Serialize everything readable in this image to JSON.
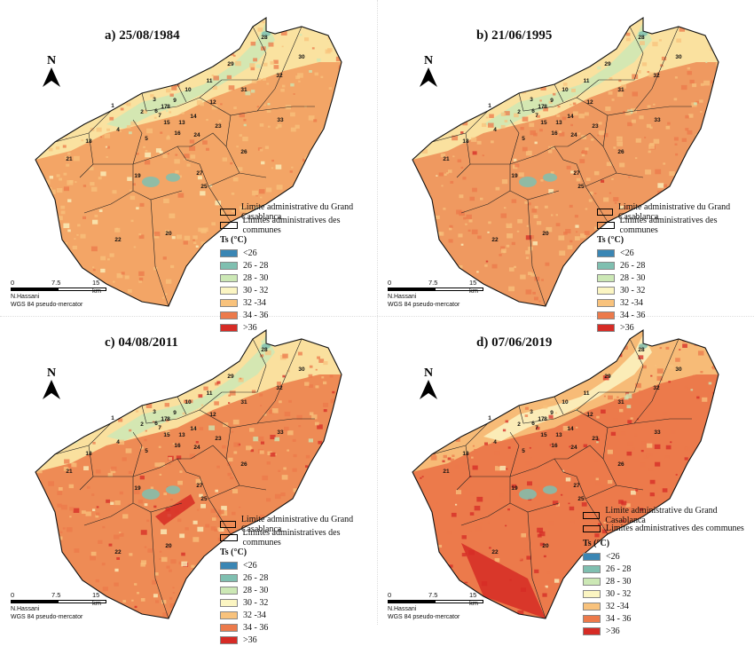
{
  "panels": [
    {
      "title": "a) 25/08/1984"
    },
    {
      "title": "b) 21/06/1995"
    },
    {
      "title": "c) 04/08/2011"
    },
    {
      "title": "d) 07/06/2019"
    }
  ],
  "legend": {
    "boundary_main": "Limite administrative du Grand Casablanca",
    "boundary_communes": "Limites administratives des communes",
    "ts_title": "Ts (°C)",
    "classes": [
      {
        "label": "<26",
        "color": "#3a86b4"
      },
      {
        "label": "26 - 28",
        "color": "#7fbfb0"
      },
      {
        "label": "28 - 30",
        "color": "#cce8b5"
      },
      {
        "label": "30 - 32",
        "color": "#fbf5c2"
      },
      {
        "label": "32 -34",
        "color": "#f8c27c"
      },
      {
        "label": "34 - 36",
        "color": "#ec7a4b"
      },
      {
        "label": ">36",
        "color": "#d62b25"
      }
    ]
  },
  "scale": {
    "t0": "0",
    "t1": "7.5",
    "t2": "15 km"
  },
  "credit": {
    "author": "N.Hassani",
    "projection": "WGS 84 pseudo-mercator"
  },
  "north": "N",
  "communes": [
    "1",
    "2",
    "3",
    "4",
    "5",
    "6",
    "7",
    "8",
    "9",
    "10",
    "11",
    "12",
    "13",
    "14",
    "15",
    "16",
    "17",
    "18",
    "19",
    "20",
    "21",
    "22",
    "23",
    "24",
    "25",
    "26",
    "27",
    "28",
    "29",
    "30",
    "31",
    "32",
    "33"
  ]
}
